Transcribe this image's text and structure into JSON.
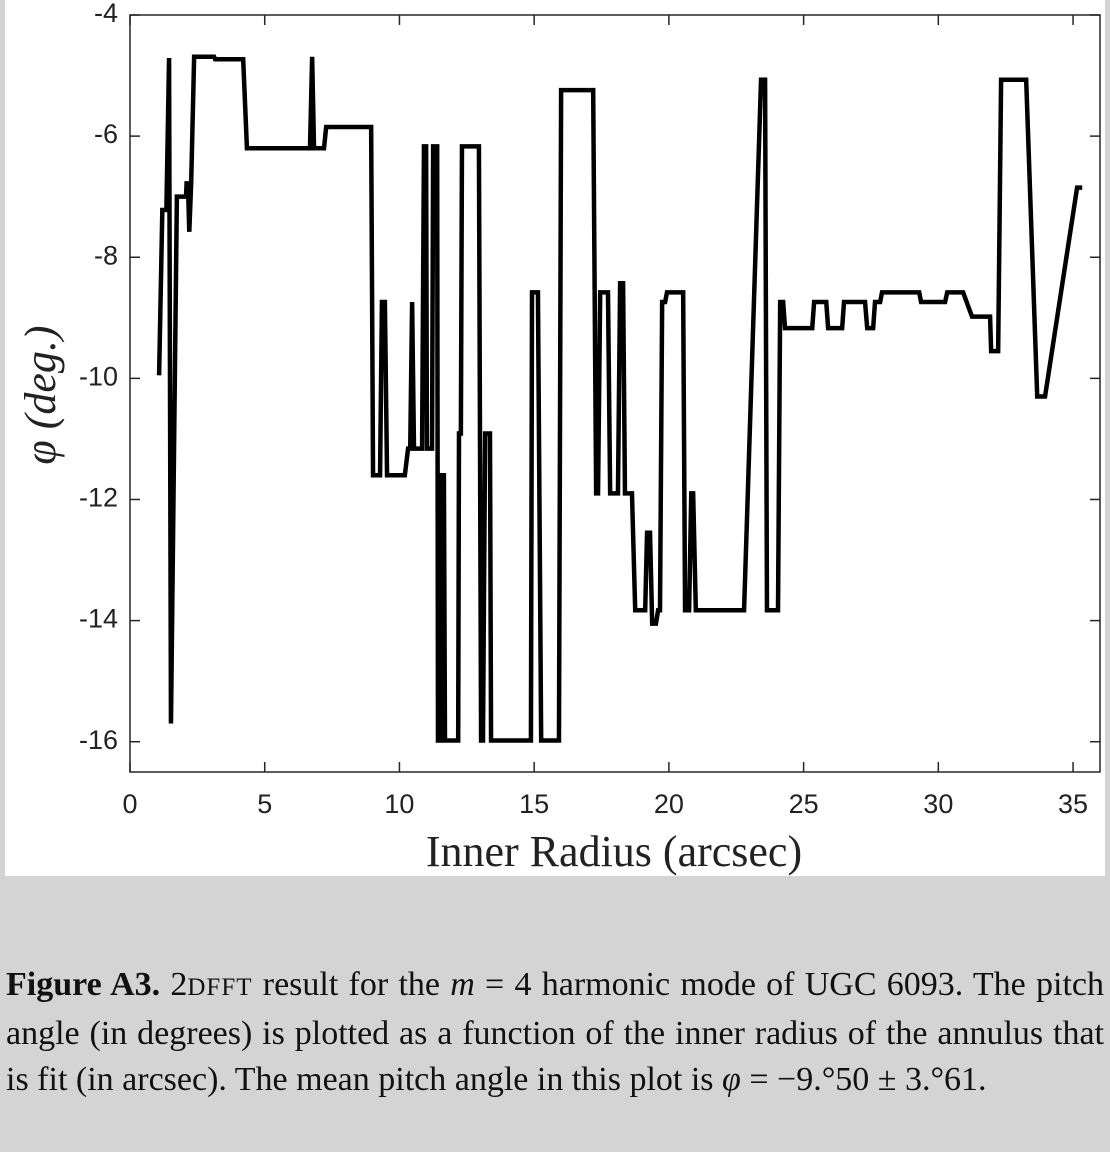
{
  "chart_data": {
    "type": "line",
    "xlabel": "Inner Radius (arcsec)",
    "ylabel": "φ (deg.)",
    "xlim": [
      0,
      36
    ],
    "ylim": [
      -16.5,
      -4
    ],
    "xticks": [
      0,
      5,
      10,
      15,
      20,
      25,
      30,
      35
    ],
    "yticks": [
      -16,
      -14,
      -12,
      -10,
      -8,
      -6,
      -4
    ],
    "color": "#000000",
    "x": [
      1.08,
      1.2,
      1.35,
      1.45,
      1.52,
      1.74,
      2.08,
      2.1,
      2.15,
      2.2,
      2.27,
      2.38,
      3.12,
      3.16,
      4.2,
      4.34,
      6.68,
      6.76,
      6.83,
      7.2,
      7.28,
      8.95,
      9.02,
      9.28,
      9.35,
      9.46,
      9.54,
      10.2,
      10.32,
      10.4,
      10.47,
      10.54,
      10.84,
      10.91,
      10.99,
      11.02,
      11.21,
      11.25,
      11.4,
      11.43,
      11.54,
      11.58,
      11.65,
      11.69,
      12.18,
      12.21,
      12.28,
      12.32,
      12.95,
      13.03,
      13.1,
      13.18,
      13.36,
      13.4,
      14.88,
      14.92,
      15.14,
      15.26,
      15.92,
      16.0,
      17.19,
      17.3,
      17.37,
      17.45,
      17.74,
      17.82,
      18.11,
      18.19,
      18.3,
      18.37,
      18.63,
      18.75,
      19.12,
      19.19,
      19.3,
      19.38,
      19.52,
      19.6,
      19.67,
      19.75,
      19.86,
      19.93,
      20.53,
      20.6,
      20.75,
      20.83,
      20.9,
      21.0,
      22.79,
      23.42,
      23.57,
      23.64,
      24.05,
      24.13,
      24.24,
      24.31,
      25.32,
      25.39,
      25.84,
      25.91,
      26.43,
      26.5,
      27.28,
      27.36,
      27.58,
      27.65,
      27.84,
      27.91,
      29.29,
      29.36,
      30.25,
      30.33,
      30.92,
      31.25,
      31.92,
      31.96,
      32.22,
      32.33,
      33.26,
      33.67,
      33.96,
      35.15,
      35.34
    ],
    "values": [
      -9.95,
      -7.22,
      -7.22,
      -4.71,
      -15.7,
      -7.0,
      -7.0,
      -6.78,
      -6.78,
      -7.58,
      -6.78,
      -4.69,
      -4.69,
      -4.73,
      -4.73,
      -6.2,
      -6.2,
      -4.69,
      -6.2,
      -6.2,
      -5.85,
      -5.85,
      -11.6,
      -11.6,
      -8.74,
      -8.74,
      -11.6,
      -11.6,
      -11.16,
      -11.16,
      -8.74,
      -11.16,
      -11.16,
      -6.17,
      -6.17,
      -11.16,
      -11.16,
      -6.17,
      -6.17,
      -15.98,
      -15.98,
      -11.6,
      -11.6,
      -15.98,
      -15.98,
      -10.91,
      -10.91,
      -6.17,
      -6.17,
      -15.98,
      -15.98,
      -10.91,
      -10.91,
      -15.98,
      -15.98,
      -8.58,
      -8.58,
      -15.98,
      -15.98,
      -5.24,
      -5.24,
      -11.9,
      -11.9,
      -8.58,
      -8.58,
      -11.9,
      -11.9,
      -8.43,
      -8.43,
      -11.9,
      -11.9,
      -13.83,
      -13.83,
      -12.55,
      -12.55,
      -14.05,
      -14.05,
      -13.83,
      -13.83,
      -8.74,
      -8.74,
      -8.58,
      -8.58,
      -13.83,
      -13.83,
      -11.9,
      -11.9,
      -13.83,
      -13.83,
      -5.07,
      -5.07,
      -13.83,
      -13.83,
      -8.74,
      -8.74,
      -9.17,
      -9.17,
      -8.74,
      -8.74,
      -9.17,
      -9.17,
      -8.74,
      -8.74,
      -9.17,
      -9.17,
      -8.74,
      -8.74,
      -8.58,
      -8.58,
      -8.74,
      -8.74,
      -8.58,
      -8.58,
      -8.98,
      -8.98,
      -9.55,
      -9.55,
      -5.07,
      -5.07,
      -10.3,
      -10.3,
      -6.85,
      -6.85
    ]
  },
  "caption": {
    "label": "Figure A3.",
    "parts": [
      " 2",
      "DFFT",
      " result for the ",
      "m",
      " = 4 harmonic mode of UGC 6093. The pitch angle (in degrees) is plotted as a function of the inner radius of the annulus that is fit (in arcsec). The mean pitch angle in this plot is ",
      "φ",
      " = −9.°50 ± 3.°61."
    ]
  }
}
